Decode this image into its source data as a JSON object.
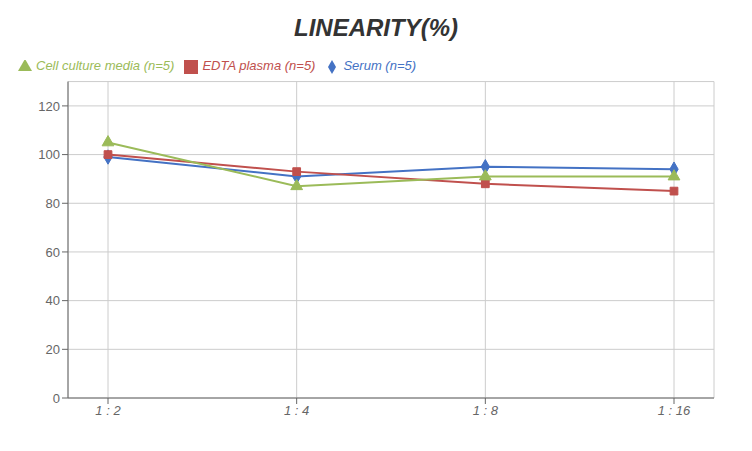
{
  "chart_data": {
    "type": "line",
    "title": "LINEARITY(%)",
    "categories": [
      "1 : 2",
      "1 : 4",
      "1 : 8",
      "1 : 16"
    ],
    "series": [
      {
        "name": "Serum (n=5)",
        "color": "#4472C4",
        "marker": "diamond",
        "values": [
          99,
          91,
          95,
          94
        ]
      },
      {
        "name": "EDTA plasma (n=5)",
        "color": "#C0504D",
        "marker": "square",
        "values": [
          100,
          93,
          88,
          85
        ]
      },
      {
        "name": "Cell culture media (n=5)",
        "color": "#9BBB59",
        "marker": "triangle",
        "values": [
          105,
          87,
          91,
          91
        ]
      }
    ],
    "ylim": [
      0,
      130
    ],
    "yticks": [
      0,
      20,
      40,
      60,
      80,
      100,
      120
    ],
    "grid": true,
    "legend": "top"
  }
}
